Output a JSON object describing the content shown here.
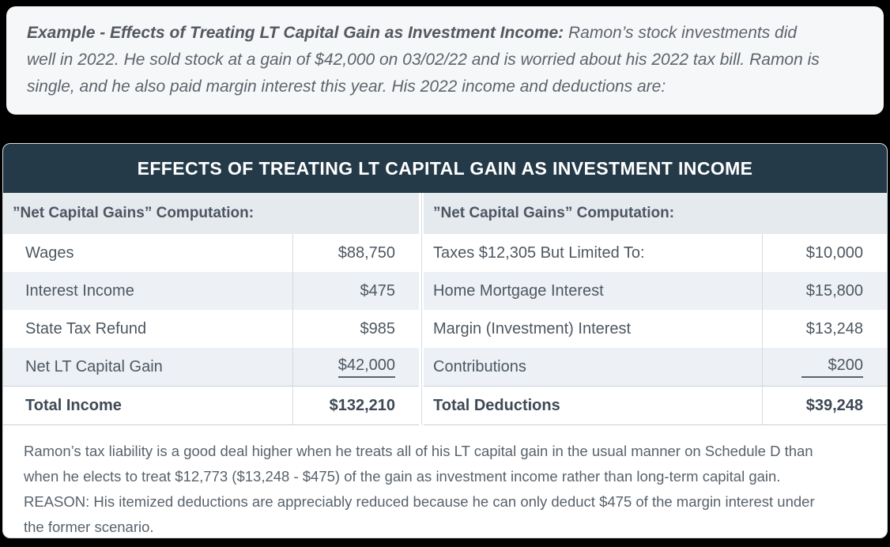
{
  "colors": {
    "page_background": "#000000",
    "callout_background": "#f6f7f9",
    "title_bar_background": "#243a49",
    "title_text": "#ffffff",
    "column_header_background": "#e5eaee",
    "row_alternate_background": "#edf1f5",
    "body_text": "#4d5761",
    "divider": "#d6dbe0"
  },
  "example": {
    "lead": "Example - Effects of Treating LT Capital Gain as Investment Income:",
    "body": "Ramon’s stock investments did well in 2022. He sold stock at a gain of $42,000 on 03/02/22 and is worried about his 2022 tax bill. Ramon is single, and he also paid margin interest this year. His 2022 income and deductions are:"
  },
  "table_card": {
    "title": "EFFECTS OF TREATING LT CAPITAL GAIN AS INVESTMENT INCOME",
    "left": {
      "header": "”Net Capital Gains” Computation:",
      "rows": [
        {
          "label": "Wages",
          "value": "$88,750"
        },
        {
          "label": "Interest Income",
          "value": "$475"
        },
        {
          "label": "State Tax Refund",
          "value": "$985"
        },
        {
          "label": "Net LT Capital Gain",
          "value": "$42,000",
          "underlined": true
        },
        {
          "label": "Total Income",
          "value": "$132,210",
          "total": true
        }
      ]
    },
    "right": {
      "header": "”Net Capital Gains” Computation:",
      "rows": [
        {
          "label": "Taxes $12,305 But Limited To:",
          "value": "$10,000"
        },
        {
          "label": "Home Mortgage Interest",
          "value": "$15,800"
        },
        {
          "label": "Margin (Investment) Interest",
          "value": "$13,248"
        },
        {
          "label": "Contributions",
          "value": "$200",
          "underlined": true
        },
        {
          "label": "Total Deductions",
          "value": "$39,248",
          "total": true
        }
      ]
    },
    "footnote": "Ramon’s tax liability is a good deal higher when he treats all of his LT capital gain in the usual manner on Schedule D than when he elects to treat $12,773 ($13,248 - $475) of the gain as investment income rather than long-term capital gain. REASON: His itemized deductions are appreciably reduced because he can only deduct $475 of the margin interest under the former scenario."
  }
}
